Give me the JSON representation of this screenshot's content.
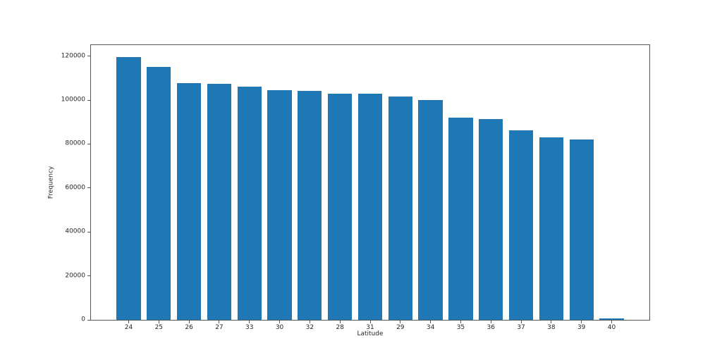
{
  "figure": {
    "background": "#ffffff"
  },
  "chart_data": {
    "type": "bar",
    "title": "",
    "xlabel": "Latitude",
    "ylabel": "Frequency",
    "categories": [
      "24",
      "25",
      "26",
      "27",
      "33",
      "30",
      "32",
      "28",
      "31",
      "29",
      "34",
      "35",
      "36",
      "37",
      "38",
      "39",
      "40"
    ],
    "values": [
      119400,
      115100,
      107700,
      107400,
      106100,
      104500,
      104100,
      102900,
      102900,
      101500,
      100000,
      92000,
      91400,
      86100,
      82900,
      82100,
      800
    ],
    "ylim": [
      0,
      125000
    ],
    "yticks": [
      0,
      20000,
      40000,
      60000,
      80000,
      100000,
      120000
    ],
    "bar_color": "#1f77b4",
    "axis_color": "#565656",
    "text_color": "#262626",
    "grid": false,
    "legend_position": "none",
    "bar_width_fraction": 0.8
  }
}
